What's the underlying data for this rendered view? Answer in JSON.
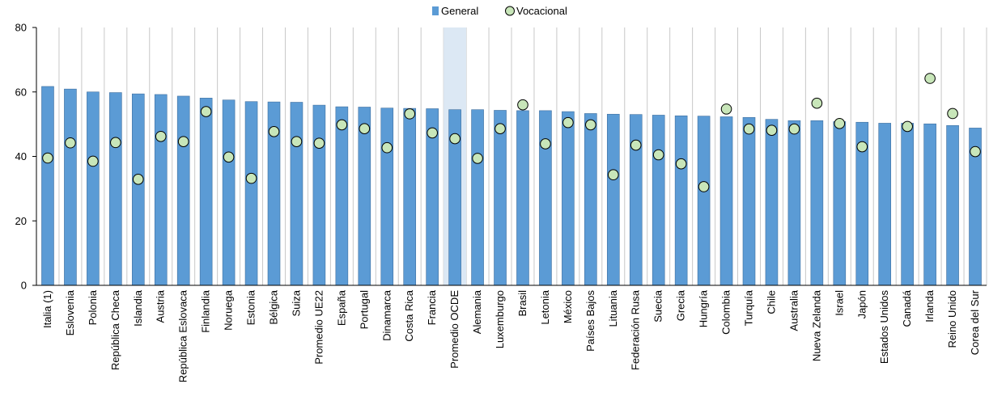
{
  "chart_data": {
    "type": "bar",
    "title": "",
    "xlabel": "",
    "ylabel": "",
    "ylim": [
      0,
      80
    ],
    "yticks": [
      0,
      20,
      40,
      60,
      80
    ],
    "grid": "vertical gridlines between categories",
    "legend_position": "top-center",
    "highlight_category": "Promedio OCDE",
    "categories": [
      "Italia (1)",
      "Eslovenia",
      "Polonia",
      "República Checa",
      "Islandia",
      "Austria",
      "República Eslovaca",
      "Finlandia",
      "Noruega",
      "Estonia",
      "Bélgica",
      "Suiza",
      "Promedio UE22",
      "España",
      "Portugal",
      "Dinamarca",
      "Costa Rica",
      "Francia",
      "Promedio OCDE",
      "Alemania",
      "Luxemburgo",
      "Brasil",
      "Letonia",
      "México",
      "Países Bajos",
      "Lituania",
      "Federación Rusa",
      "Suecia",
      "Grecia",
      "Hungría",
      "Colombia",
      "Turquía",
      "Chile",
      "Australia",
      "Nueva Zelanda",
      "Israel",
      "Japón",
      "Estados Unidos",
      "Canadá",
      "Irlanda",
      "Reino Unido",
      "Corea del Sur"
    ],
    "series": [
      {
        "name": "General",
        "type": "bar",
        "values": [
          61.7,
          60.9,
          60.0,
          59.8,
          59.4,
          59.2,
          58.7,
          58.1,
          57.5,
          57.0,
          56.9,
          56.8,
          55.9,
          55.4,
          55.3,
          55.0,
          54.9,
          54.8,
          54.5,
          54.5,
          54.3,
          54.2,
          54.2,
          53.9,
          53.3,
          53.1,
          53.0,
          52.8,
          52.6,
          52.5,
          52.3,
          52.1,
          51.5,
          51.1,
          51.1,
          50.8,
          50.6,
          50.3,
          50.3,
          50.1,
          49.6,
          48.8
        ],
        "color": "#5b9bd5"
      },
      {
        "name": "Vocacional",
        "type": "scatter",
        "values": [
          39.5,
          44.2,
          38.5,
          44.3,
          32.9,
          46.2,
          44.6,
          53.9,
          39.8,
          33.2,
          47.7,
          44.6,
          44.1,
          49.8,
          48.6,
          42.7,
          53.2,
          47.3,
          45.5,
          39.4,
          48.6,
          56.0,
          43.9,
          50.5,
          49.8,
          34.3,
          43.5,
          40.5,
          37.7,
          30.6,
          54.7,
          48.5,
          48.1,
          48.5,
          56.5,
          50.2,
          43.0,
          null,
          49.3,
          64.2,
          53.3,
          41.5
        ],
        "color": "#c8e6b9"
      }
    ]
  }
}
